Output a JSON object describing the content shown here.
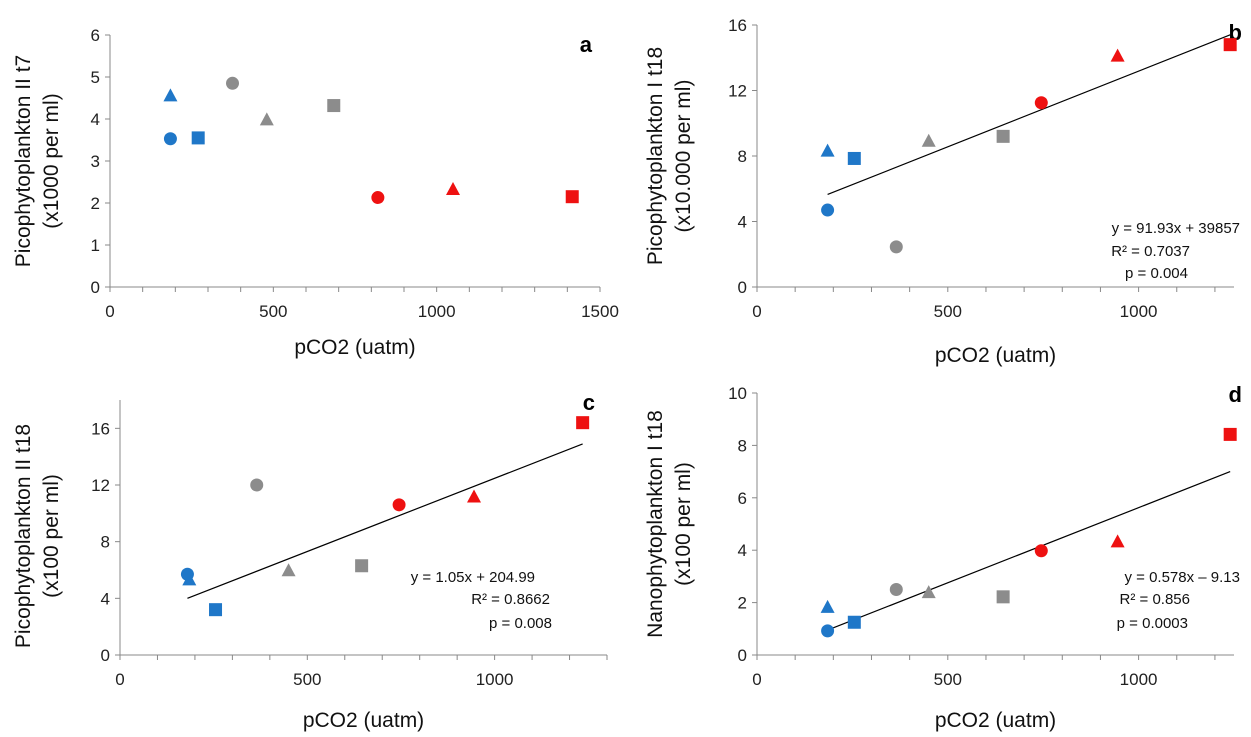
{
  "chart_data": [
    {
      "type": "scatter",
      "panel_label": "a",
      "xlabel": "pCO2 (uatm)",
      "ylabel_lines": [
        "Picophytoplankton II t7",
        "(x1000 per ml)"
      ],
      "xlim": [
        0,
        1500
      ],
      "ylim": [
        0,
        6
      ],
      "xticks": [
        0,
        500,
        1000,
        1500
      ],
      "yticks": [
        0,
        1,
        2,
        3,
        4,
        5,
        6
      ],
      "points": [
        {
          "x": 185,
          "y": 4.55,
          "marker": "triangle",
          "color": "#1f77c8"
        },
        {
          "x": 185,
          "y": 3.53,
          "marker": "circle",
          "color": "#1f77c8"
        },
        {
          "x": 270,
          "y": 3.55,
          "marker": "square",
          "color": "#1f77c8"
        },
        {
          "x": 375,
          "y": 4.85,
          "marker": "circle",
          "color": "#8c8c8c"
        },
        {
          "x": 480,
          "y": 3.98,
          "marker": "triangle",
          "color": "#8c8c8c"
        },
        {
          "x": 685,
          "y": 4.32,
          "marker": "square",
          "color": "#8c8c8c"
        },
        {
          "x": 820,
          "y": 2.13,
          "marker": "circle",
          "color": "#ee1111"
        },
        {
          "x": 1050,
          "y": 2.32,
          "marker": "triangle",
          "color": "#ee1111"
        },
        {
          "x": 1415,
          "y": 2.15,
          "marker": "square",
          "color": "#ee1111"
        }
      ],
      "trendline": null,
      "annotations": []
    },
    {
      "type": "scatter",
      "panel_label": "b",
      "xlabel": "pCO2 (uatm)",
      "ylabel_lines": [
        "Picophytoplankton I t18",
        "(x10.000 per ml)"
      ],
      "xlim": [
        0,
        1250
      ],
      "ylim": [
        0,
        16
      ],
      "xticks": [
        0,
        500,
        1000
      ],
      "yticks": [
        0,
        4,
        8,
        12,
        16
      ],
      "points": [
        {
          "x": 185,
          "y": 8.3,
          "marker": "triangle",
          "color": "#1f77c8"
        },
        {
          "x": 185,
          "y": 4.7,
          "marker": "circle",
          "color": "#1f77c8"
        },
        {
          "x": 255,
          "y": 7.85,
          "marker": "square",
          "color": "#1f77c8"
        },
        {
          "x": 365,
          "y": 2.45,
          "marker": "circle",
          "color": "#8c8c8c"
        },
        {
          "x": 450,
          "y": 8.9,
          "marker": "triangle",
          "color": "#8c8c8c"
        },
        {
          "x": 645,
          "y": 9.2,
          "marker": "square",
          "color": "#8c8c8c"
        },
        {
          "x": 745,
          "y": 11.25,
          "marker": "circle",
          "color": "#ee1111"
        },
        {
          "x": 945,
          "y": 14.1,
          "marker": "triangle",
          "color": "#ee1111"
        },
        {
          "x": 1240,
          "y": 14.8,
          "marker": "square",
          "color": "#ee1111"
        }
      ],
      "trendline": {
        "x": [
          185,
          1240
        ],
        "y": [
          5.65,
          15.4
        ]
      },
      "annotations": [
        "y = 91.93x + 39857",
        "R² = 0.7037",
        "p = 0.004"
      ]
    },
    {
      "type": "scatter",
      "panel_label": "c",
      "xlabel": "pCO2 (uatm)",
      "ylabel_lines": [
        "Picophytoplankton II t18",
        "(x100 per ml)"
      ],
      "xlim": [
        0,
        1300
      ],
      "ylim": [
        0,
        18
      ],
      "xticks": [
        0,
        500,
        1000
      ],
      "yticks": [
        0,
        4,
        8,
        12,
        16
      ],
      "points": [
        {
          "x": 185,
          "y": 5.3,
          "marker": "triangle",
          "color": "#1f77c8"
        },
        {
          "x": 180,
          "y": 5.7,
          "marker": "circle",
          "color": "#1f77c8"
        },
        {
          "x": 255,
          "y": 3.2,
          "marker": "square",
          "color": "#1f77c8"
        },
        {
          "x": 365,
          "y": 12.0,
          "marker": "circle",
          "color": "#8c8c8c"
        },
        {
          "x": 450,
          "y": 5.95,
          "marker": "triangle",
          "color": "#8c8c8c"
        },
        {
          "x": 645,
          "y": 6.3,
          "marker": "square",
          "color": "#8c8c8c"
        },
        {
          "x": 745,
          "y": 10.6,
          "marker": "circle",
          "color": "#ee1111"
        },
        {
          "x": 945,
          "y": 11.15,
          "marker": "triangle",
          "color": "#ee1111"
        },
        {
          "x": 1235,
          "y": 16.4,
          "marker": "square",
          "color": "#ee1111"
        }
      ],
      "trendline": {
        "x": [
          180,
          1235
        ],
        "y": [
          4.0,
          14.9
        ]
      },
      "annotations": [
        "y = 1.05x + 204.99",
        "R² = 0.8662",
        "p = 0.008"
      ]
    },
    {
      "type": "scatter",
      "panel_label": "d",
      "xlabel": "pCO2 (uatm)",
      "ylabel_lines": [
        "Nanophytoplankton I t18",
        "(x100 per ml)"
      ],
      "xlim": [
        0,
        1250
      ],
      "ylim": [
        0,
        10
      ],
      "xticks": [
        0,
        500,
        1000
      ],
      "yticks": [
        0,
        2,
        4,
        6,
        8,
        10
      ],
      "points": [
        {
          "x": 185,
          "y": 1.82,
          "marker": "triangle",
          "color": "#1f77c8"
        },
        {
          "x": 185,
          "y": 0.92,
          "marker": "circle",
          "color": "#1f77c8"
        },
        {
          "x": 255,
          "y": 1.25,
          "marker": "square",
          "color": "#1f77c8"
        },
        {
          "x": 365,
          "y": 2.5,
          "marker": "circle",
          "color": "#8c8c8c"
        },
        {
          "x": 450,
          "y": 2.38,
          "marker": "triangle",
          "color": "#8c8c8c"
        },
        {
          "x": 645,
          "y": 2.22,
          "marker": "square",
          "color": "#8c8c8c"
        },
        {
          "x": 745,
          "y": 3.98,
          "marker": "circle",
          "color": "#ee1111"
        },
        {
          "x": 945,
          "y": 4.32,
          "marker": "triangle",
          "color": "#ee1111"
        },
        {
          "x": 1240,
          "y": 8.42,
          "marker": "square",
          "color": "#ee1111"
        }
      ],
      "trendline": {
        "x": [
          185,
          1240
        ],
        "y": [
          0.95,
          7.0
        ]
      },
      "annotations": [
        "y = 0.578x – 9.13",
        "R² = 0.856",
        "p = 0.0003"
      ]
    }
  ]
}
